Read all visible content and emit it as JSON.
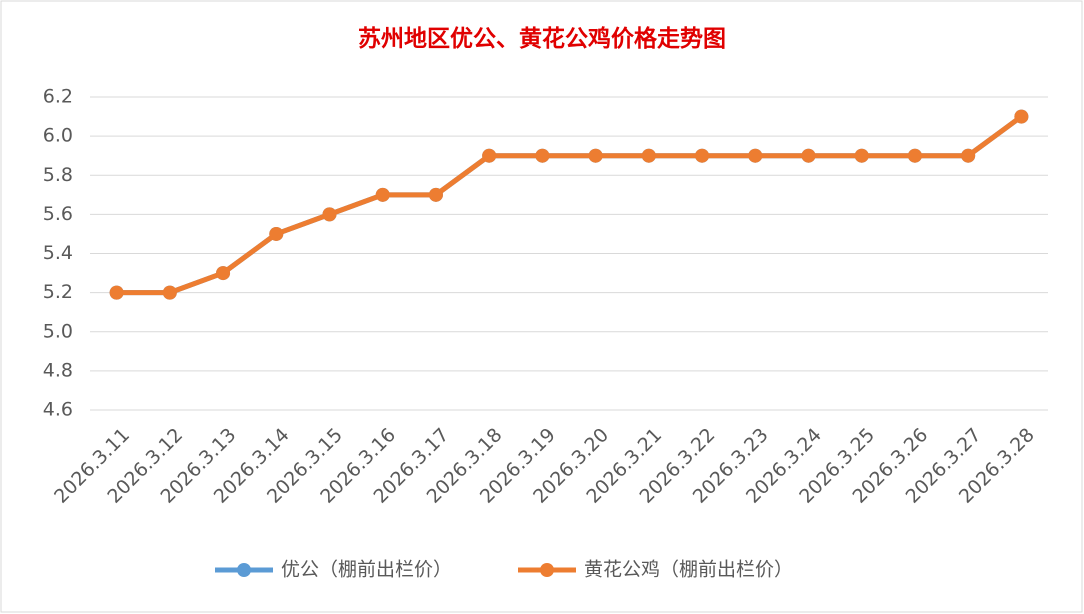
{
  "chart_data": {
    "type": "line",
    "title": "苏州地区优公、黄花公鸡价格走势图",
    "categories": [
      "2026.3.11",
      "2026.3.12",
      "2026.3.13",
      "2026.3.14",
      "2026.3.15",
      "2026.3.16",
      "2026.3.17",
      "2026.3.18",
      "2026.3.19",
      "2026.3.20",
      "2026.3.21",
      "2026.3.22",
      "2026.3.23",
      "2026.3.24",
      "2026.3.25",
      "2026.3.26",
      "2026.3.27",
      "2026.3.28"
    ],
    "series": [
      {
        "name": "优公（棚前出栏价）",
        "color": "#5b9bd5",
        "values": [
          5.2,
          5.2,
          5.3,
          5.5,
          5.6,
          5.7,
          5.7,
          5.9,
          5.9,
          5.9,
          5.9,
          5.9,
          5.9,
          5.9,
          5.9,
          5.9,
          5.9,
          6.1
        ]
      },
      {
        "name": "黄花公鸡（棚前出栏价）",
        "color": "#ed7d31",
        "values": [
          5.2,
          5.2,
          5.3,
          5.5,
          5.6,
          5.7,
          5.7,
          5.9,
          5.9,
          5.9,
          5.9,
          5.9,
          5.9,
          5.9,
          5.9,
          5.9,
          5.9,
          6.1
        ]
      }
    ],
    "ylim": [
      4.6,
      6.2
    ],
    "yticks": [
      4.6,
      4.8,
      {
        "value": 5.0,
        "label": "5.0"
      },
      5.2,
      5.4,
      5.6,
      5.8,
      {
        "value": 6.0,
        "label": "6.0"
      },
      6.2
    ],
    "grid": true,
    "legend": "bottom"
  }
}
